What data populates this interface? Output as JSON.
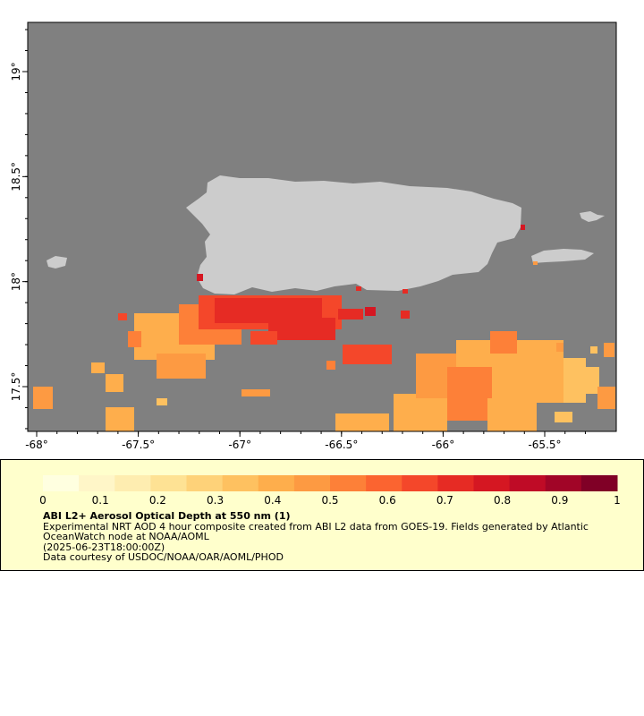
{
  "map": {
    "x_ticks": [
      {
        "lon": -68,
        "label": "-68°"
      },
      {
        "lon": -67.5,
        "label": "-67.5°"
      },
      {
        "lon": -67,
        "label": "-67°"
      },
      {
        "lon": -66.5,
        "label": "-66.5°"
      },
      {
        "lon": -66,
        "label": "-66°"
      },
      {
        "lon": -65.5,
        "label": "-65.5°"
      }
    ],
    "y_ticks": [
      {
        "lat": 19,
        "label": "19°"
      },
      {
        "lat": 18.5,
        "label": "18.5°"
      },
      {
        "lat": 18,
        "label": "18°"
      },
      {
        "lat": 17.5,
        "label": "17.5°"
      }
    ],
    "colors": {
      "ocean": "#808080",
      "land": "#cccccc",
      "background": "#ffffff"
    }
  },
  "colorbar": {
    "min": 0,
    "max": 1,
    "tick_labels": [
      "0",
      "0.1",
      "0.2",
      "0.3",
      "0.4",
      "0.5",
      "0.6",
      "0.7",
      "0.8",
      "0.9",
      "1"
    ],
    "colors": [
      "#ffffe0",
      "#fff6c8",
      "#feedb0",
      "#fee294",
      "#fed279",
      "#fec160",
      "#feae4c",
      "#fd9a42",
      "#fd8038",
      "#fb6430",
      "#f4472a",
      "#e62b24",
      "#d51722",
      "#bf0b26",
      "#a10527",
      "#800026"
    ]
  },
  "caption": {
    "title": "ABI L2+ Aerosol Optical Depth at 550 nm (1)",
    "line1": "Experimental NRT AOD 4 hour composite created from ABI L2 data from GOES-19. Fields generated by Atlantic OceanWatch node at NOAA/AOML",
    "line2": "(2025-06-23T18:00:00Z)",
    "line3": "Data courtesy of USDOC/NOAA/OAR/AOML/PHOD"
  }
}
